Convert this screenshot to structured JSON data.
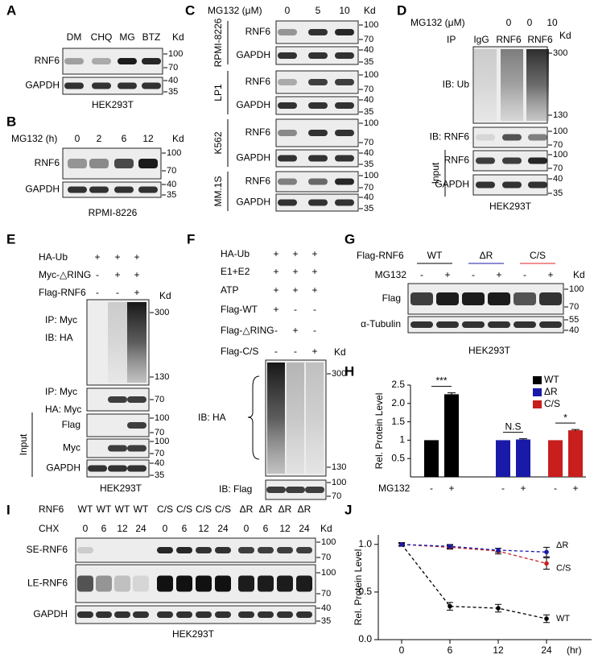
{
  "panels": {
    "A": {
      "letter": "A",
      "lanes": [
        "DM",
        "CHQ",
        "MG",
        "BTZ"
      ],
      "kd": "Kd",
      "blots": [
        {
          "label": "RNF6",
          "markers": [
            "100",
            "70"
          ]
        },
        {
          "label": "GAPDH",
          "markers": [
            "40",
            "35"
          ]
        }
      ],
      "footer": "HEK293T"
    },
    "B": {
      "letter": "B",
      "treatment": "MG132 (h)",
      "lanes": [
        "0",
        "2",
        "6",
        "12"
      ],
      "kd": "Kd",
      "blots": [
        {
          "label": "RNF6",
          "markers": [
            "100",
            "70"
          ]
        },
        {
          "label": "GAPDH",
          "markers": [
            "40",
            "35"
          ]
        }
      ],
      "footer": "RPMI-8226"
    },
    "C": {
      "letter": "C",
      "treatment": "MG132 (μM)",
      "lanes": [
        "0",
        "5",
        "10"
      ],
      "kd": "Kd",
      "groups": [
        {
          "cell": "RPMI-8226",
          "blots": [
            {
              "label": "RNF6",
              "markers": [
                "100",
                "70"
              ]
            },
            {
              "label": "GAPDH",
              "markers": [
                "40",
                "35"
              ]
            }
          ]
        },
        {
          "cell": "LP1",
          "blots": [
            {
              "label": "RNF6",
              "markers": [
                "100",
                "70"
              ]
            },
            {
              "label": "GAPDH",
              "markers": [
                "40",
                "35"
              ]
            }
          ]
        },
        {
          "cell": "K562",
          "blots": [
            {
              "label": "RNF6",
              "markers": [
                "100",
                "70"
              ]
            },
            {
              "label": "GAPDH",
              "markers": [
                "40",
                "35"
              ]
            }
          ]
        },
        {
          "cell": "MM.1S",
          "blots": [
            {
              "label": "RNF6",
              "markers": [
                "100",
                "70"
              ]
            },
            {
              "label": "GAPDH",
              "markers": [
                "40",
                "35"
              ]
            }
          ]
        }
      ]
    },
    "D": {
      "letter": "D",
      "treatment": "MG132 (μM)",
      "lanes": [
        "0",
        "0",
        "10"
      ],
      "ip": "IP",
      "ip_lanes": [
        "IgG",
        "RNF6",
        "RNF6"
      ],
      "kd": "Kd",
      "blots": [
        {
          "label": "IB: Ub",
          "markers": [
            "300",
            "130"
          ]
        },
        {
          "label": "IB: RNF6",
          "markers": [
            "100",
            "70"
          ]
        }
      ],
      "input": {
        "label": "Input",
        "blots": [
          {
            "label": "RNF6",
            "markers": [
              "100",
              "70"
            ]
          },
          {
            "label": "GAPDH",
            "markers": [
              "40",
              "35"
            ]
          }
        ]
      },
      "footer": "HEK293T"
    },
    "E": {
      "letter": "E",
      "conditions": [
        {
          "label": "HA-Ub",
          "signs": [
            "+",
            "+",
            "+"
          ]
        },
        {
          "label": "Myc-△RING",
          "signs": [
            "-",
            "+",
            "+"
          ]
        },
        {
          "label": "Flag-RNF6",
          "signs": [
            "-",
            "-",
            "+"
          ]
        }
      ],
      "kd": "Kd",
      "blots": [
        {
          "label": [
            "IP: Myc",
            "IB: HA"
          ],
          "markers": [
            "300",
            "130"
          ]
        },
        {
          "label": [
            "IP: Myc",
            "HA: Myc"
          ],
          "markers": [
            "70"
          ]
        }
      ],
      "input": {
        "label": "Input",
        "blots": [
          {
            "label": "Flag",
            "markers": [
              "100",
              "70"
            ]
          },
          {
            "label": "Myc",
            "markers": [
              "100",
              "70"
            ]
          },
          {
            "label": "GAPDH",
            "markers": [
              "40",
              "35"
            ]
          }
        ]
      },
      "footer": "HEK293T"
    },
    "F": {
      "letter": "F",
      "conditions": [
        {
          "label": "HA-Ub",
          "signs": [
            "+",
            "+",
            "+"
          ]
        },
        {
          "label": "E1+E2",
          "signs": [
            "+",
            "+",
            "+"
          ]
        },
        {
          "label": "ATP",
          "signs": [
            "+",
            "+",
            "+"
          ]
        },
        {
          "label": "Flag-WT",
          "signs": [
            "+",
            "-",
            "-"
          ]
        },
        {
          "label": "Flag-△RING",
          "signs": [
            "-",
            "+",
            "-"
          ]
        },
        {
          "label": "Flag-C/S",
          "signs": [
            "-",
            "-",
            "+"
          ]
        }
      ],
      "kd": "Kd",
      "blots": [
        {
          "label": "IB: HA",
          "markers": [
            "300",
            "130"
          ]
        },
        {
          "label": "IB: Flag",
          "markers": [
            "100",
            "70"
          ]
        }
      ]
    },
    "G": {
      "letter": "G",
      "construct": "Flag-RNF6",
      "groups": [
        {
          "label": "WT",
          "color": "#000000"
        },
        {
          "label": "ΔR",
          "color": "#1a1aa8"
        },
        {
          "label": "C/S",
          "color": "#e02020"
        }
      ],
      "treatment": "MG132",
      "signs": [
        "-",
        "+",
        "-",
        "+",
        "-",
        "+"
      ],
      "kd": "Kd",
      "blots": [
        {
          "label": "Flag",
          "markers": [
            "100",
            "70"
          ]
        },
        {
          "label": "α-Tubulin",
          "markers": [
            "55",
            "40"
          ]
        }
      ],
      "footer": "HEK293T"
    },
    "I": {
      "letter": "I",
      "genotype_label": "RNF6",
      "genotypes": [
        {
          "label": "WT",
          "color": "#000000"
        },
        {
          "label": "WT",
          "color": "#000000"
        },
        {
          "label": "WT",
          "color": "#000000"
        },
        {
          "label": "WT",
          "color": "#000000"
        },
        {
          "label": "C/S",
          "color": "#e02020"
        },
        {
          "label": "C/S",
          "color": "#e02020"
        },
        {
          "label": "C/S",
          "color": "#e02020"
        },
        {
          "label": "C/S",
          "color": "#e02020"
        },
        {
          "label": "ΔR",
          "color": "#1a1aa8"
        },
        {
          "label": "ΔR",
          "color": "#1a1aa8"
        },
        {
          "label": "ΔR",
          "color": "#1a1aa8"
        },
        {
          "label": "ΔR",
          "color": "#1a1aa8"
        }
      ],
      "treatment": "CHX",
      "lanes": [
        "0",
        "6",
        "12",
        "24",
        "0",
        "6",
        "12",
        "24",
        "0",
        "6",
        "12",
        "24"
      ],
      "kd": "Kd",
      "blots": [
        {
          "label": "SE-RNF6",
          "markers": [
            "100",
            "70"
          ]
        },
        {
          "label": "LE-RNF6",
          "markers": [
            "100",
            "70"
          ]
        },
        {
          "label": "GAPDH",
          "markers": [
            "40",
            "35"
          ]
        }
      ],
      "footer": "HEK293T"
    }
  },
  "chart_data": [
    {
      "panel": "H",
      "type": "bar",
      "y_label": "Rel. Protein Level",
      "x_label": "MG132",
      "categories": [
        "-",
        "+"
      ],
      "series": [
        {
          "name": "WT",
          "color": "#000000",
          "values": [
            1,
            2.25
          ],
          "errors": [
            0,
            0.04
          ],
          "annotation": "***"
        },
        {
          "name": "ΔR",
          "color": "#1a1aa8",
          "values": [
            1,
            1.02
          ],
          "errors": [
            0,
            0.02
          ],
          "annotation": "N.S"
        },
        {
          "name": "C/S",
          "color": "#c81e1e",
          "values": [
            1,
            1.27
          ],
          "errors": [
            0,
            0.02
          ],
          "annotation": "*"
        }
      ],
      "ylim": [
        0,
        2.5
      ],
      "yticks": [
        0.5,
        1,
        1.5,
        {
          "value": 2,
          "label": "2.0"
        },
        2.5
      ],
      "legend": "top-right"
    },
    {
      "panel": "J",
      "type": "line",
      "y_label": "Rel. Protein Level",
      "categories": [
        "0",
        "6",
        "12",
        "24"
      ],
      "x_unit": "(hr)",
      "series": [
        {
          "name": "WT",
          "color": "#000000",
          "values": [
            1.0,
            0.35,
            0.33,
            0.22
          ],
          "errors": [
            0.02,
            0.04,
            0.04,
            0.04
          ]
        },
        {
          "name": "C/S",
          "color": "#c81e1e",
          "values": [
            1.0,
            0.97,
            0.93,
            0.8
          ],
          "errors": [
            0.01,
            0.02,
            0.03,
            0.06
          ]
        },
        {
          "name": "ΔR",
          "color": "#1a1aa8",
          "values": [
            1.0,
            0.98,
            0.94,
            0.92
          ],
          "errors": [
            0.01,
            0.02,
            0.02,
            0.05
          ]
        }
      ],
      "ylim": [
        0,
        1.1
      ],
      "yticks": [
        {
          "value": 0,
          "label": "0.0"
        },
        0.5,
        {
          "value": 1,
          "label": "1.0"
        }
      ],
      "line_style": "dashed"
    }
  ]
}
